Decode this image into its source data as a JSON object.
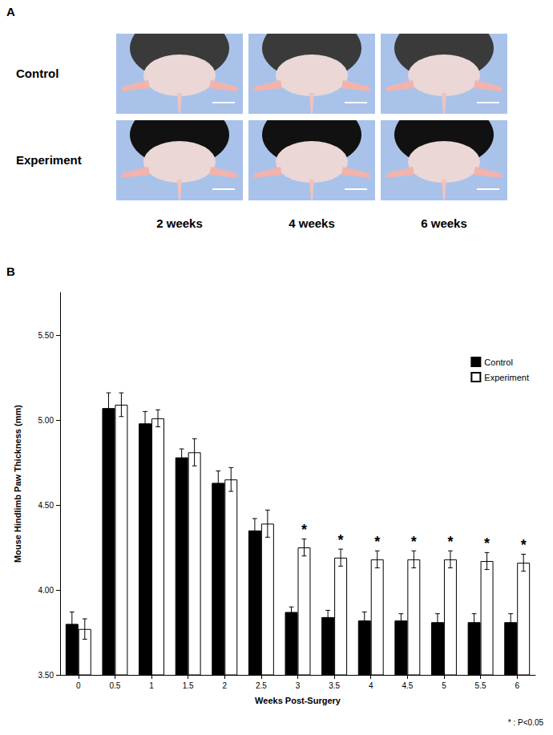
{
  "panel_a": {
    "label": "A",
    "rows": [
      "Control",
      "Experiment"
    ],
    "columns": [
      "2 weeks",
      "4 weeks",
      "6 weeks"
    ]
  },
  "chart_data": {
    "type": "bar",
    "panel_label": "B",
    "x_label": "Weeks Post-Surgery",
    "y_label": "Mouse Hindlimb Paw Thickness (mm)",
    "categories": [
      "0",
      "0.5",
      "1",
      "1.5",
      "2",
      "2.5",
      "3",
      "3.5",
      "4",
      "4.5",
      "5",
      "5.5",
      "6"
    ],
    "series": [
      {
        "name": "Control",
        "color": "#000000",
        "values": [
          3.8,
          5.07,
          4.98,
          4.78,
          4.63,
          4.35,
          3.87,
          3.84,
          3.82,
          3.82,
          3.81,
          3.81,
          3.81
        ],
        "errors": [
          0.07,
          0.09,
          0.07,
          0.05,
          0.07,
          0.07,
          0.03,
          0.04,
          0.05,
          0.04,
          0.05,
          0.05,
          0.05
        ]
      },
      {
        "name": "Experiment",
        "color": "#ffffff",
        "values": [
          3.77,
          5.09,
          5.01,
          4.81,
          4.65,
          4.39,
          4.25,
          4.19,
          4.18,
          4.18,
          4.18,
          4.17,
          4.16
        ],
        "errors": [
          0.06,
          0.07,
          0.05,
          0.08,
          0.07,
          0.08,
          0.05,
          0.05,
          0.05,
          0.05,
          0.05,
          0.05,
          0.05
        ],
        "annotations": [
          null,
          null,
          null,
          null,
          null,
          null,
          "*",
          "*",
          "*",
          "*",
          "*",
          "*",
          "*"
        ]
      }
    ],
    "ylim": [
      3.5,
      5.75
    ],
    "yticks": [
      {
        "value": 3.5,
        "label": "3.50"
      },
      {
        "value": 4.0,
        "label": "4.00"
      },
      {
        "value": 4.5,
        "label": "4.50"
      },
      {
        "value": 5.0,
        "label": "5.00"
      },
      {
        "value": 5.5,
        "label": "5.50"
      }
    ],
    "grid": false,
    "legend": "upper right",
    "footnote": "* : P<0.05"
  }
}
